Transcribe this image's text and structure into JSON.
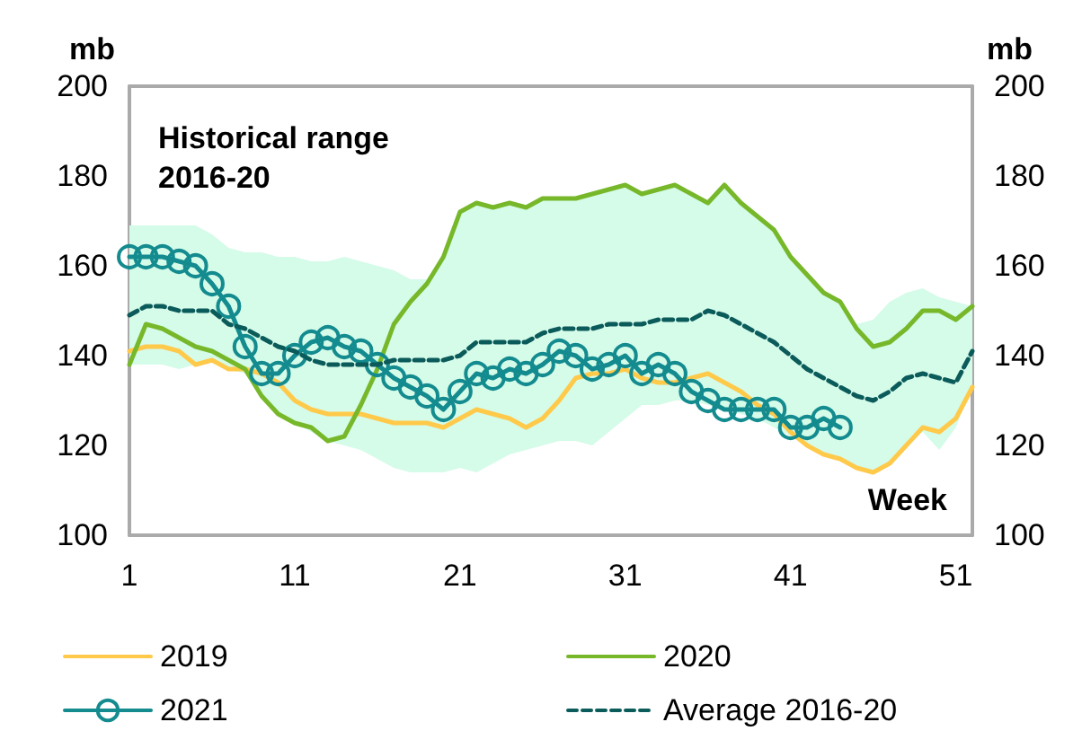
{
  "chart_data": {
    "type": "line",
    "x": [
      1,
      2,
      3,
      4,
      5,
      6,
      7,
      8,
      9,
      10,
      11,
      12,
      13,
      14,
      15,
      16,
      17,
      18,
      19,
      20,
      21,
      22,
      23,
      24,
      25,
      26,
      27,
      28,
      29,
      30,
      31,
      32,
      33,
      34,
      35,
      36,
      37,
      38,
      39,
      40,
      41,
      42,
      43,
      44,
      45,
      46,
      47,
      48,
      49,
      50,
      51,
      52
    ],
    "series": [
      {
        "name": "2019",
        "color": "#ffc94a",
        "marker": "none",
        "line_style": "solid",
        "values": [
          141,
          142,
          142,
          141,
          138,
          139,
          137,
          137,
          136,
          134,
          130,
          128,
          127,
          127,
          127,
          126,
          125,
          125,
          125,
          124,
          126,
          128,
          127,
          126,
          124,
          126,
          130,
          135,
          136,
          136,
          137,
          135,
          134,
          134,
          135,
          136,
          134,
          132,
          129,
          127,
          123,
          120,
          118,
          117,
          115,
          114,
          116,
          120,
          124,
          123,
          126,
          133
        ]
      },
      {
        "name": "2020",
        "color": "#77b82a",
        "marker": "none",
        "line_style": "solid",
        "values": [
          138,
          147,
          146,
          144,
          142,
          141,
          139,
          137,
          131,
          127,
          125,
          124,
          121,
          122,
          129,
          137,
          147,
          152,
          156,
          162,
          172,
          174,
          173,
          174,
          173,
          175,
          175,
          175,
          176,
          177,
          178,
          176,
          177,
          178,
          176,
          174,
          178,
          174,
          171,
          168,
          162,
          158,
          154,
          152,
          146,
          142,
          143,
          146,
          150,
          150,
          148,
          151
        ]
      },
      {
        "name": "2021",
        "color": "#138b8f",
        "marker": "circle",
        "line_style": "solid",
        "values": [
          162,
          162,
          162,
          161,
          160,
          156,
          151,
          142,
          136,
          136,
          140,
          143,
          144,
          142,
          141,
          138,
          135,
          133,
          131,
          128,
          132,
          136,
          135,
          137,
          136,
          138,
          141,
          140,
          137,
          138,
          140,
          136,
          138,
          136,
          132,
          130,
          128,
          128,
          128,
          128,
          124,
          124,
          126,
          124,
          null,
          null,
          null,
          null,
          null,
          null,
          null,
          null
        ]
      },
      {
        "name": "Average 2016-20",
        "color": "#0b5b5b",
        "marker": "none",
        "line_style": "dashed",
        "values": [
          149,
          151,
          151,
          150,
          150,
          150,
          147,
          146,
          144,
          142,
          141,
          139,
          138,
          138,
          138,
          138,
          139,
          139,
          139,
          139,
          140,
          143,
          143,
          143,
          143,
          145,
          146,
          146,
          146,
          147,
          147,
          147,
          148,
          148,
          148,
          150,
          149,
          147,
          145,
          143,
          140,
          137,
          135,
          133,
          131,
          130,
          132,
          135,
          136,
          135,
          134,
          141
        ],
        "upper": [
          169,
          169,
          169,
          169,
          169,
          167,
          164,
          163,
          163,
          162,
          162,
          161,
          161,
          162,
          161,
          160,
          159,
          157,
          157,
          162,
          172,
          174,
          173,
          174,
          173,
          175,
          175,
          175,
          176,
          177,
          178,
          176,
          177,
          178,
          176,
          174,
          178,
          174,
          171,
          168,
          162,
          158,
          154,
          152,
          147,
          148,
          152,
          154,
          155,
          153,
          152,
          151
        ],
        "lower": [
          138,
          138,
          138,
          137,
          138,
          139,
          137,
          136,
          131,
          127,
          125,
          123,
          121,
          120,
          119,
          117,
          115,
          114,
          114,
          114,
          115,
          114,
          116,
          118,
          119,
          120,
          121,
          121,
          120,
          123,
          126,
          129,
          129,
          130,
          130,
          129,
          128,
          127,
          126,
          124,
          122,
          120,
          118,
          117,
          115,
          114,
          116,
          120,
          123,
          119,
          124,
          133
        ]
      }
    ],
    "annotations": [
      "Historical range 2016-20"
    ],
    "xlabel": "Week",
    "ylabel": "mb",
    "y2label": "mb",
    "xlim": [
      1,
      52
    ],
    "xticks": [
      1,
      11,
      21,
      31,
      41,
      51
    ],
    "ylim": [
      100,
      200
    ],
    "yticks": [
      100,
      120,
      140,
      160,
      180,
      200
    ],
    "y2lim": [
      100,
      200
    ],
    "y2ticks": [
      100,
      120,
      140,
      160,
      180,
      200
    ],
    "grid": false,
    "legend": "bottom"
  }
}
